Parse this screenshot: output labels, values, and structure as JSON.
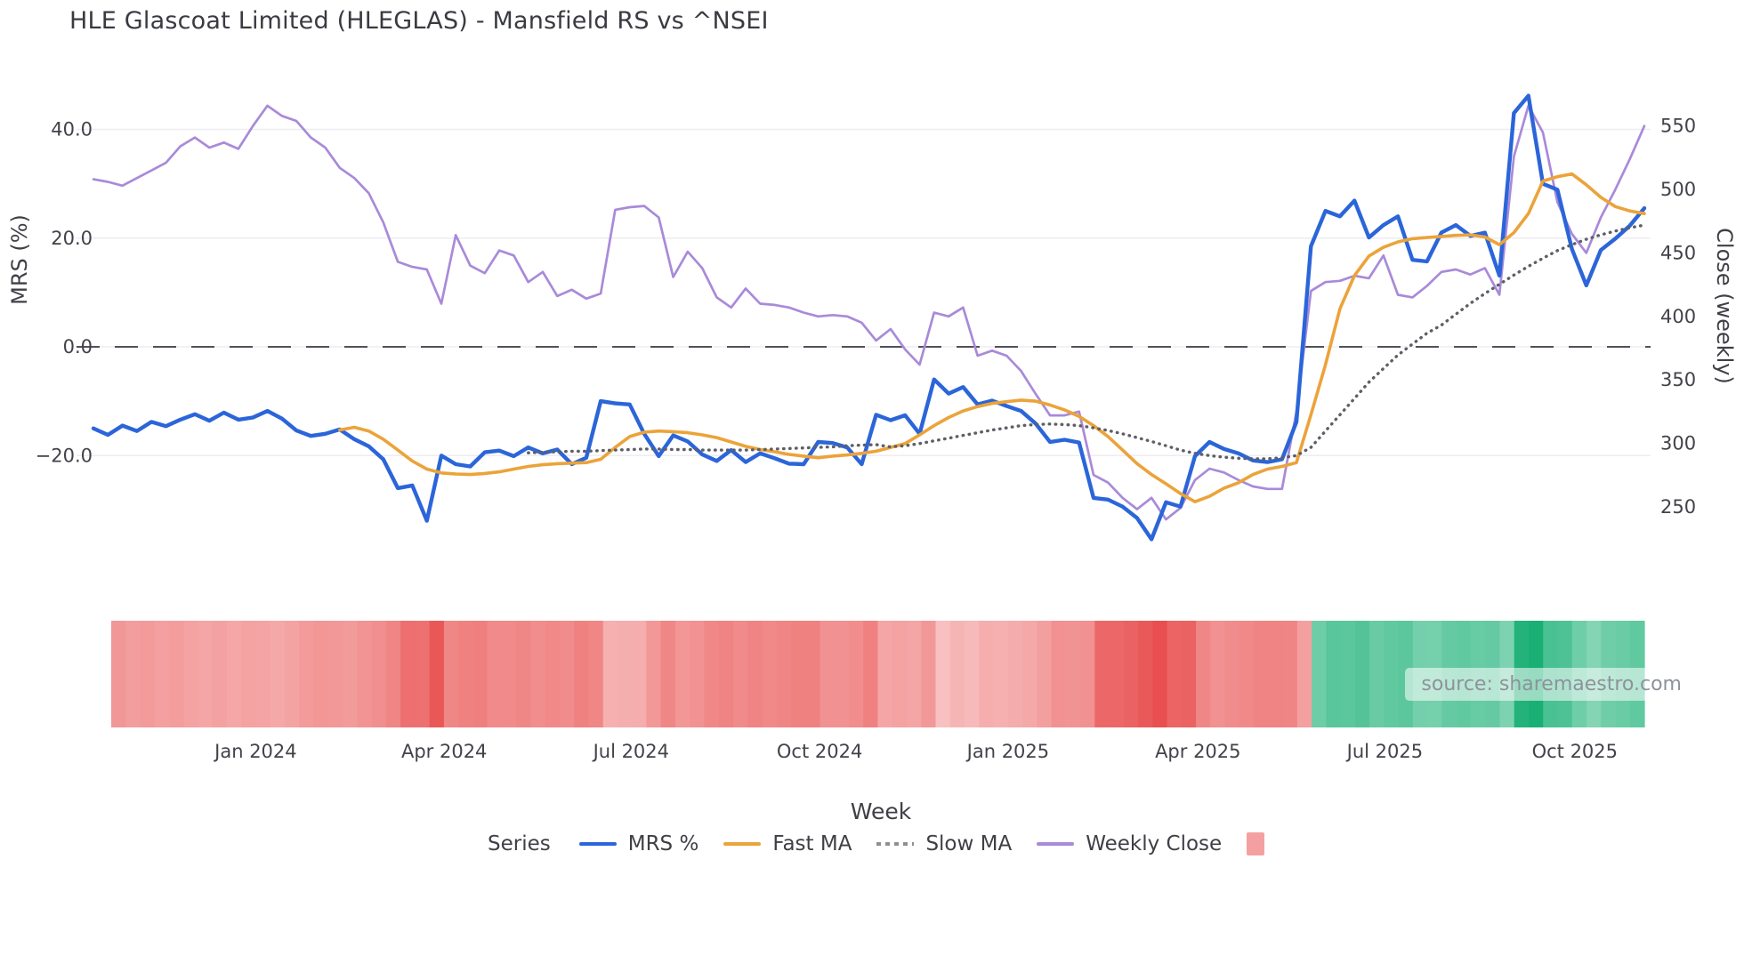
{
  "title": "HLE Glascoat Limited (HLEGLAS) - Mansfield RS vs ^NSEI",
  "watermark": "source: sharemaestro.com",
  "colors": {
    "background": "#ffffff",
    "grid": "#ededf2",
    "zero_line": "#50515a",
    "tick_text": "#42434a",
    "title_text": "#3a3b42",
    "watermark_text": "#8d929b",
    "mrs_line": "#2b65d9",
    "fast_ma_line": "#eba33a",
    "slow_ma_line": "#5e5f66",
    "weekly_close_line": "#a98ad9",
    "legend_swatch_square": "#f4a0a0"
  },
  "y_left": {
    "label": "MRS (%)",
    "ticks": [
      {
        "label": "40.0",
        "value": 40
      },
      {
        "label": "20.0",
        "value": 20
      },
      {
        "label": "0.0",
        "value": 0
      },
      {
        "label": "−20.0",
        "value": -20
      }
    ]
  },
  "y_right": {
    "label": "Close (weekly)",
    "ticks": [
      {
        "label": "550",
        "value": 550
      },
      {
        "label": "500",
        "value": 500
      },
      {
        "label": "450",
        "value": 450
      },
      {
        "label": "400",
        "value": 400
      },
      {
        "label": "350",
        "value": 350
      },
      {
        "label": "300",
        "value": 300
      },
      {
        "label": "250",
        "value": 250
      }
    ]
  },
  "x_axis": {
    "label": "Week",
    "ticks": [
      {
        "label": "Jan 2024",
        "week": 11.2
      },
      {
        "label": "Apr 2024",
        "week": 24.2
      },
      {
        "label": "Jul 2024",
        "week": 37.1
      },
      {
        "label": "Oct 2024",
        "week": 50.1
      },
      {
        "label": "Jan 2025",
        "week": 63.1
      },
      {
        "label": "Apr 2025",
        "week": 76.2
      },
      {
        "label": "Jul 2025",
        "week": 89.1
      },
      {
        "label": "Oct 2025",
        "week": 102.2
      }
    ]
  },
  "legend": {
    "title": "Series",
    "items": [
      {
        "label": "MRS %",
        "color": "#2b65d9",
        "type": "line"
      },
      {
        "label": "Fast MA",
        "color": "#eba33a",
        "type": "line"
      },
      {
        "label": "Slow MA",
        "color": "#8f9096",
        "type": "dotted"
      },
      {
        "label": "Weekly Close",
        "color": "#a98ad9",
        "type": "line"
      },
      {
        "label": "",
        "color": "#f4a0a0",
        "type": "square"
      }
    ]
  },
  "chart_data": {
    "type": "line",
    "weeks": 108,
    "axis_ranges": {
      "left_mrs_pct": [
        -40,
        50
      ],
      "right_close": [
        230,
        585
      ]
    },
    "grid": true,
    "zero_reference_line": 0,
    "series": [
      {
        "name": "MRS %",
        "axis": "left",
        "color": "#2b65d9",
        "width": 4.4,
        "dash": "solid",
        "start_index": 0,
        "values": [
          -15.0,
          -16.2,
          -14.5,
          -15.5,
          -13.8,
          -14.6,
          -13.4,
          -12.4,
          -13.6,
          -12.1,
          -13.4,
          -13.0,
          -11.8,
          -13.2,
          -15.4,
          -16.4,
          -16.0,
          -15.2,
          -17.0,
          -18.3,
          -20.7,
          -26.0,
          -25.5,
          -32.0,
          -20.0,
          -21.6,
          -22.0,
          -19.4,
          -19.1,
          -20.1,
          -18.5,
          -19.6,
          -18.9,
          -21.6,
          -20.4,
          -10.0,
          -10.4,
          -10.6,
          -16.0,
          -20.1,
          -16.3,
          -17.4,
          -19.8,
          -21.0,
          -19.0,
          -21.2,
          -19.6,
          -20.5,
          -21.5,
          -21.6,
          -17.5,
          -17.7,
          -18.5,
          -21.6,
          -12.5,
          -13.5,
          -12.6,
          -16.0,
          -6.0,
          -8.6,
          -7.4,
          -10.6,
          -9.9,
          -10.9,
          -11.8,
          -14.1,
          -17.5,
          -17.1,
          -17.6,
          -27.8,
          -28.1,
          -29.4,
          -31.5,
          -35.4,
          -28.6,
          -29.4,
          -20.1,
          -17.5,
          -18.8,
          -19.6,
          -20.9,
          -21.2,
          -20.7,
          -13.8,
          18.5,
          25.0,
          24.0,
          26.9,
          20.1,
          22.4,
          24.0,
          16.0,
          15.7,
          21.0,
          22.4,
          20.4,
          21.0,
          13.1,
          43.0,
          46.2,
          30.0,
          28.9,
          18.0,
          11.3,
          17.8,
          19.9,
          22.3,
          25.5
        ]
      },
      {
        "name": "Fast MA",
        "axis": "left",
        "color": "#eba33a",
        "width": 3.6,
        "dash": "solid",
        "start_index": 17,
        "values": [
          -15.3,
          -14.8,
          -15.5,
          -17.0,
          -19.0,
          -21.0,
          -22.5,
          -23.2,
          -23.4,
          -23.5,
          -23.3,
          -23.0,
          -22.5,
          -22.0,
          -21.7,
          -21.5,
          -21.4,
          -21.3,
          -20.7,
          -18.5,
          -16.5,
          -15.7,
          -15.5,
          -15.6,
          -15.8,
          -16.2,
          -16.7,
          -17.5,
          -18.3,
          -18.9,
          -19.3,
          -19.8,
          -20.1,
          -20.4,
          -20.1,
          -19.9,
          -19.6,
          -19.2,
          -18.5,
          -17.8,
          -16.2,
          -14.5,
          -13.0,
          -11.8,
          -11.0,
          -10.4,
          -10.1,
          -9.8,
          -10.0,
          -10.7,
          -11.6,
          -12.8,
          -14.5,
          -16.5,
          -19.0,
          -21.5,
          -23.5,
          -25.2,
          -27.0,
          -28.5,
          -27.5,
          -26.0,
          -25.0,
          -23.5,
          -22.5,
          -22.0,
          -21.3,
          -12.5,
          -3.3,
          7.0,
          13.1,
          16.7,
          18.3,
          19.3,
          19.9,
          20.1,
          20.3,
          20.5,
          20.6,
          20.2,
          18.8,
          21.0,
          24.5,
          30.5,
          31.3,
          31.8,
          29.8,
          27.5,
          25.8,
          25.0,
          24.5
        ]
      },
      {
        "name": "Slow MA",
        "axis": "left",
        "color": "#5e5f66",
        "width": 3.4,
        "dash": "dotted",
        "start_index": 30,
        "values": [
          -19.5,
          -19.4,
          -19.3,
          -19.2,
          -19.2,
          -19.1,
          -19.0,
          -18.9,
          -18.8,
          -18.8,
          -18.9,
          -18.9,
          -19.0,
          -19.0,
          -19.0,
          -19.0,
          -18.9,
          -18.8,
          -18.7,
          -18.6,
          -18.5,
          -18.4,
          -18.2,
          -18.1,
          -18.0,
          -18.4,
          -18.2,
          -17.8,
          -17.3,
          -16.8,
          -16.3,
          -15.8,
          -15.3,
          -14.9,
          -14.5,
          -14.3,
          -14.2,
          -14.3,
          -14.5,
          -14.9,
          -15.4,
          -16.0,
          -16.7,
          -17.4,
          -18.2,
          -19.0,
          -19.6,
          -20.0,
          -20.3,
          -20.5,
          -20.6,
          -20.6,
          -20.4,
          -20.0,
          -18.5,
          -15.5,
          -12.5,
          -9.5,
          -6.5,
          -4.0,
          -1.5,
          0.5,
          2.5,
          4.0,
          6.0,
          8.0,
          9.8,
          11.5,
          13.2,
          14.8,
          16.3,
          17.7,
          18.8,
          19.8,
          20.6,
          21.3,
          21.9,
          22.4
        ]
      },
      {
        "name": "Weekly Close",
        "axis": "right",
        "color": "#a98ad9",
        "width": 2.7,
        "dash": "solid",
        "start_index": 0,
        "values": [
          508,
          506,
          503,
          509,
          515,
          521,
          534,
          541,
          533,
          537,
          532,
          550,
          566,
          558,
          554,
          541,
          533,
          517,
          509,
          497,
          474,
          443,
          439,
          437,
          410,
          464,
          440,
          434,
          452,
          448,
          427,
          435,
          416,
          421,
          414,
          418,
          484,
          486,
          487,
          478,
          431,
          451,
          438,
          415,
          407,
          422,
          410,
          409,
          407,
          403,
          400,
          401,
          400,
          395,
          381,
          390,
          374,
          362,
          403,
          400,
          407,
          369,
          373,
          369,
          357,
          339,
          322,
          322,
          325,
          275,
          269,
          257,
          248,
          257,
          240,
          249,
          271,
          280,
          277,
          271,
          266,
          264,
          264,
          325,
          420,
          427,
          428,
          432,
          430,
          448,
          417,
          415,
          424,
          435,
          437,
          433,
          438,
          417,
          526,
          566,
          545,
          490,
          465,
          450,
          478,
          500,
          524,
          550
        ]
      }
    ],
    "heatmap": {
      "based_on": "MRS %",
      "cells": 106,
      "negative": {
        "light": "#fbd8d8",
        "strong": "#e94f4f",
        "cap": 34
      },
      "positive": {
        "light": "#e0f7ed",
        "strong": "#1aaf75",
        "cap": 46,
        "floor": 0.3
      }
    }
  }
}
